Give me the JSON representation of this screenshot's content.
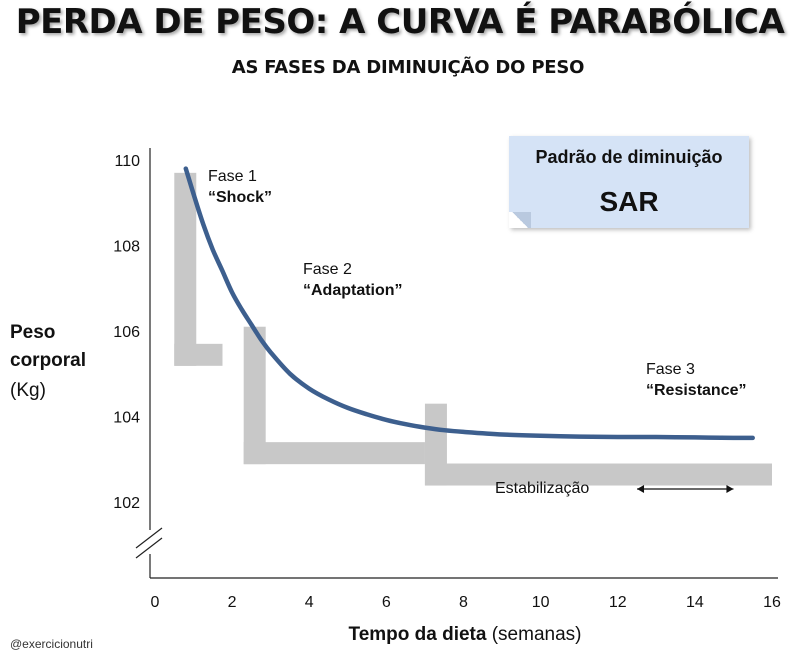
{
  "title": "PERDA DE PESO: A CURVA É PARABÓLICA",
  "subtitle": "AS FASES DA DIMINUIÇÃO DO PESO",
  "credit": "@exercicionutri",
  "pattern_box": {
    "title": "Padrão de diminuição",
    "value": "SAR",
    "color": "#d5e3f6"
  },
  "phases": [
    {
      "name": "Fase 1",
      "term": "“Shock”"
    },
    {
      "name": "Fase 2",
      "term": "“Adaptation”"
    },
    {
      "name": "Fase 3",
      "term": "“Resistance”"
    }
  ],
  "stabilization_label": "Estabilização",
  "chart_data": {
    "type": "line",
    "ylabel_lines": [
      "Peso",
      "corporal",
      "(Kg)"
    ],
    "xlabel_main": "Tempo da dieta",
    "xlabel_unit": "(semanas)",
    "x_ticks": [
      0,
      2,
      4,
      6,
      8,
      10,
      12,
      14,
      16
    ],
    "y_ticks": [
      102,
      104,
      106,
      108,
      110
    ],
    "xlim": [
      0,
      16
    ],
    "ylim": [
      101.3,
      110
    ],
    "axis_break": true,
    "grid": false,
    "line_color": "#3d5f8e",
    "shadow_color": "#c8c8c8",
    "series": [
      {
        "x": [
          0.8,
          1.0,
          1.25,
          1.5,
          1.75,
          2.0,
          2.25,
          2.5,
          2.75,
          3.0,
          3.5,
          4.0,
          4.5,
          5.0,
          5.5,
          6.0,
          6.5,
          7.0,
          7.5,
          8.0,
          9.0,
          10.0,
          11.0,
          12.0,
          13.0,
          14.0,
          15.0,
          15.5
        ],
        "y": [
          109.8,
          109.2,
          108.5,
          107.9,
          107.4,
          106.9,
          106.5,
          106.15,
          105.8,
          105.5,
          105.0,
          104.65,
          104.4,
          104.2,
          104.05,
          103.92,
          103.82,
          103.74,
          103.68,
          103.64,
          103.58,
          103.55,
          103.53,
          103.52,
          103.52,
          103.51,
          103.5,
          103.5
        ]
      }
    ],
    "phase_steps": [
      {
        "x0": 0.5,
        "x1": 1.75,
        "y_top": 109.7,
        "y_bottom": 105.7
      },
      {
        "x0": 2.3,
        "x1": 7.0,
        "y_top": 106.1,
        "y_bottom": 103.4
      },
      {
        "x0": 7.0,
        "x1": 16.0,
        "y_top": 104.3,
        "y_bottom": 102.9
      }
    ],
    "stabilization_range": [
      12.5,
      15.0
    ]
  }
}
